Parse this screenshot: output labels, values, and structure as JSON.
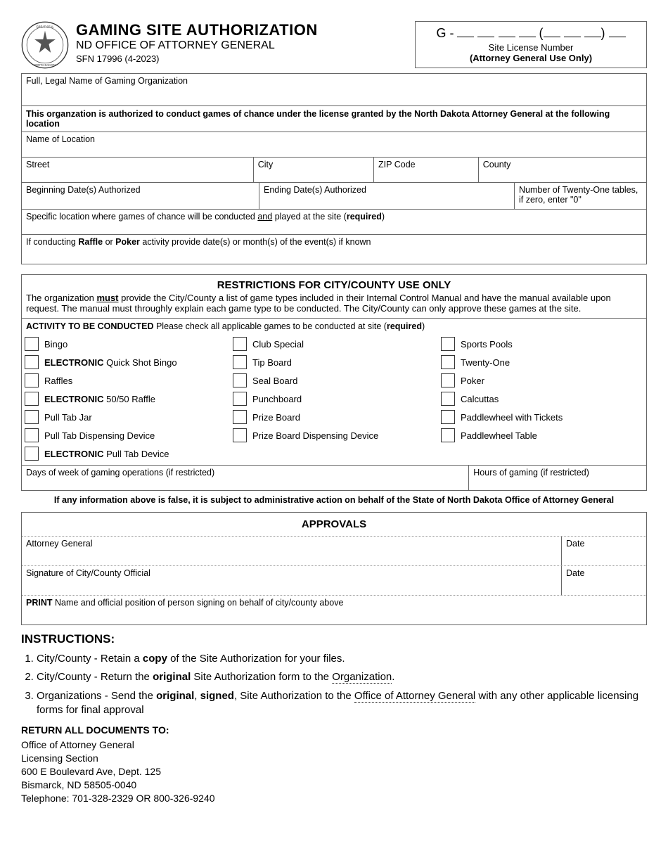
{
  "header": {
    "title": "GAMING SITE AUTHORIZATION",
    "subtitle": "ND OFFICE OF ATTORNEY GENERAL",
    "form_no": "SFN 17996 (4-2023)",
    "license_prefix": "G -",
    "license_caption1": "Site License Number",
    "license_caption2": "(Attorney General Use Only)"
  },
  "fields": {
    "org_name_label": "Full, Legal Name of Gaming Organization",
    "auth_banner": "This organzation is authorized to conduct games of chance under the license granted by the North Dakota Attorney General at the following location",
    "location_name": "Name of Location",
    "street": "Street",
    "city": "City",
    "zip": "ZIP Code",
    "county": "County",
    "begin_date": "Beginning Date(s) Authorized",
    "end_date": "Ending Date(s) Authorized",
    "twentyone": "Number of Twenty-One tables, if zero, enter \"0\"",
    "specific_loc_pre": "Specific location where games of chance will be conducted ",
    "specific_loc_und": "and",
    "specific_loc_post": " played at the site (",
    "specific_loc_req": "required",
    "specific_loc_close": ")",
    "raffle_poker_pre": "If conducting ",
    "raffle_poker_b1": "Raffle",
    "raffle_poker_mid": " or ",
    "raffle_poker_b2": "Poker",
    "raffle_poker_post": " activity provide date(s) or month(s) of the event(s) if known",
    "days_restricted": "Days of week of gaming operations (if restricted)",
    "hours_restricted": "Hours of gaming (if restricted)"
  },
  "restrictions": {
    "title": "RESTRICTIONS FOR CITY/COUNTY USE ONLY",
    "text_pre": "The organization ",
    "text_must": "must",
    "text_post": " provide the City/County a list of game types included in their Internal Control Manual and have the manual available upon request. The manual must throughly explain each game type to be conducted. The City/County can only approve these games at the site.",
    "activity_head_b": "ACTIVITY TO BE CONDUCTED",
    "activity_head_rest": " Please check all applicable games to be conducted at site (",
    "activity_head_req": "required",
    "activity_head_close": ")"
  },
  "games": {
    "col1": [
      "Bingo",
      "",
      "Raffles",
      "",
      "Pull Tab Jar",
      "Pull Tab Dispensing Device",
      ""
    ],
    "col1_special": {
      "1": {
        "b": "ELECTRONIC",
        "rest": " Quick Shot Bingo"
      },
      "3": {
        "b": "ELECTRONIC",
        "rest": " 50/50 Raffle"
      },
      "6": {
        "b": "ELECTRONIC",
        "rest": " Pull Tab Device"
      }
    },
    "col2": [
      "Club Special",
      "Tip Board",
      "Seal Board",
      "Punchboard",
      "Prize Board",
      "Prize Board Dispensing Device"
    ],
    "col3": [
      "Sports Pools",
      "Twenty-One",
      "Poker",
      "Calcuttas",
      "Paddlewheel with Tickets",
      "Paddlewheel Table"
    ]
  },
  "false_note": "If any information above is false, it is subject to administrative action on behalf of the State of North Dakota Office of Attorney General",
  "approvals": {
    "title": "APPROVALS",
    "ag": "Attorney General",
    "date": "Date",
    "city_official": "Signature of City/County Official",
    "print_pre": "PRINT",
    "print_rest": " Name and official position of person signing on behalf of city/county above"
  },
  "instructions": {
    "title": "INSTRUCTIONS:",
    "i1_pre": "City/County - Retain a ",
    "i1_b": "copy",
    "i1_post": " of the Site Authorization for your files.",
    "i2_pre": "City/County - Return the ",
    "i2_b": "original",
    "i2_mid": " Site Authorization form to the ",
    "i2_u": "Organization",
    "i2_post": ".",
    "i3_pre": "Organizations - Send the ",
    "i3_b1": "original",
    "i3_mid1": ", ",
    "i3_b2": "signed",
    "i3_mid2": ", Site Authorization to the ",
    "i3_u": "Office of Attorney General",
    "i3_post": " with any other applicable licensing forms for final approval"
  },
  "return": {
    "title": "RETURN ALL DOCUMENTS TO:",
    "l1": "Office of Attorney General",
    "l2": "Licensing Section",
    "l3": "600 E Boulevard Ave, Dept. 125",
    "l4": "Bismarck, ND 58505-0040",
    "l5": "Telephone: 701-328-2329 OR 800-326-9240"
  }
}
